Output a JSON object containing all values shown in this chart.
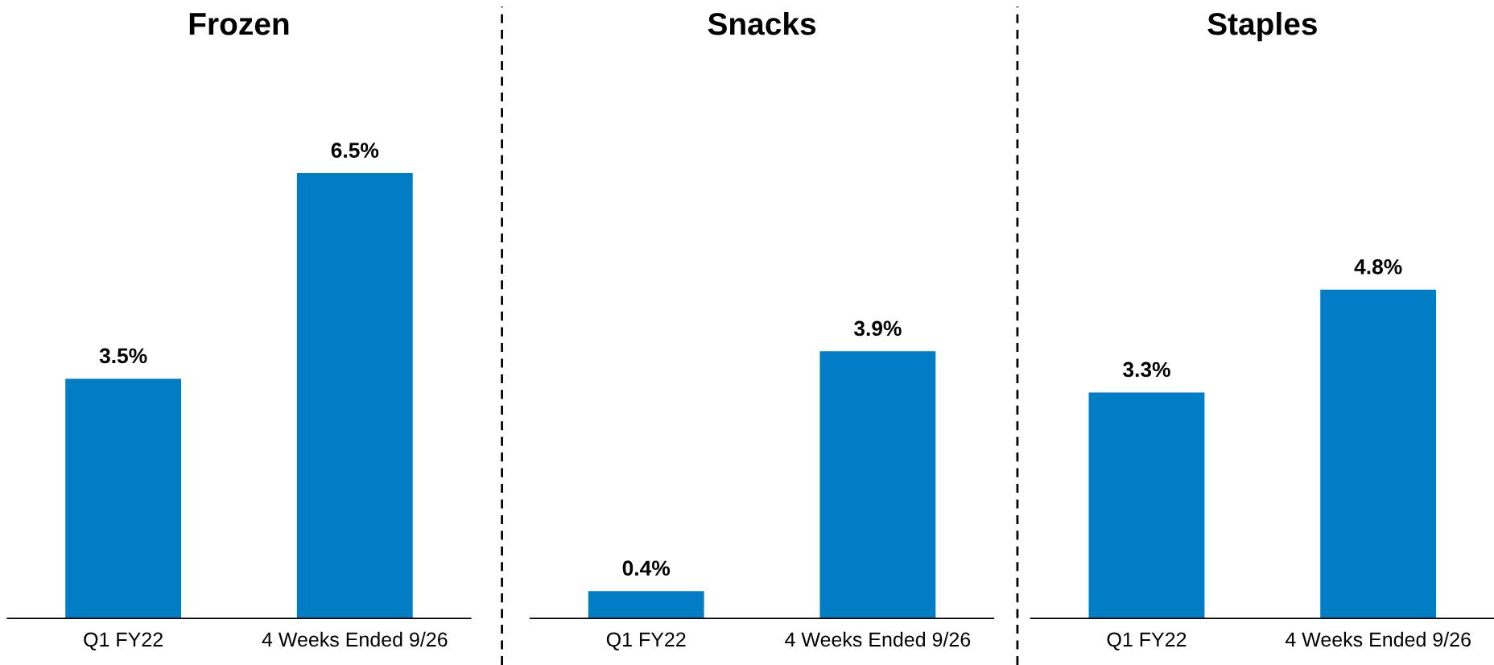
{
  "chart_data": [
    {
      "type": "bar",
      "title": "Frozen",
      "categories": [
        "Q1 FY22",
        "4 Weeks Ended 9/26"
      ],
      "values": [
        3.5,
        6.5
      ],
      "color": "#007dc5",
      "value_labels": [
        "3.5%",
        "6.5%"
      ],
      "grid": false,
      "legend": false,
      "tick_labels": "x"
    },
    {
      "type": "bar",
      "title": "Snacks",
      "categories": [
        "Q1 FY22",
        "4 Weeks Ended 9/26"
      ],
      "values": [
        0.4,
        3.9
      ],
      "color": "#007dc5",
      "value_labels": [
        "0.4%",
        "3.9%"
      ],
      "grid": false,
      "legend": false,
      "tick_labels": "x"
    },
    {
      "type": "bar",
      "title": "Staples",
      "categories": [
        "Q1 FY22",
        "4 Weeks Ended 9/26"
      ],
      "values": [
        3.3,
        4.8
      ],
      "color": "#007dc5",
      "value_labels": [
        "3.3%",
        "4.8%"
      ],
      "grid": false,
      "legend": false,
      "tick_labels": "x"
    }
  ]
}
